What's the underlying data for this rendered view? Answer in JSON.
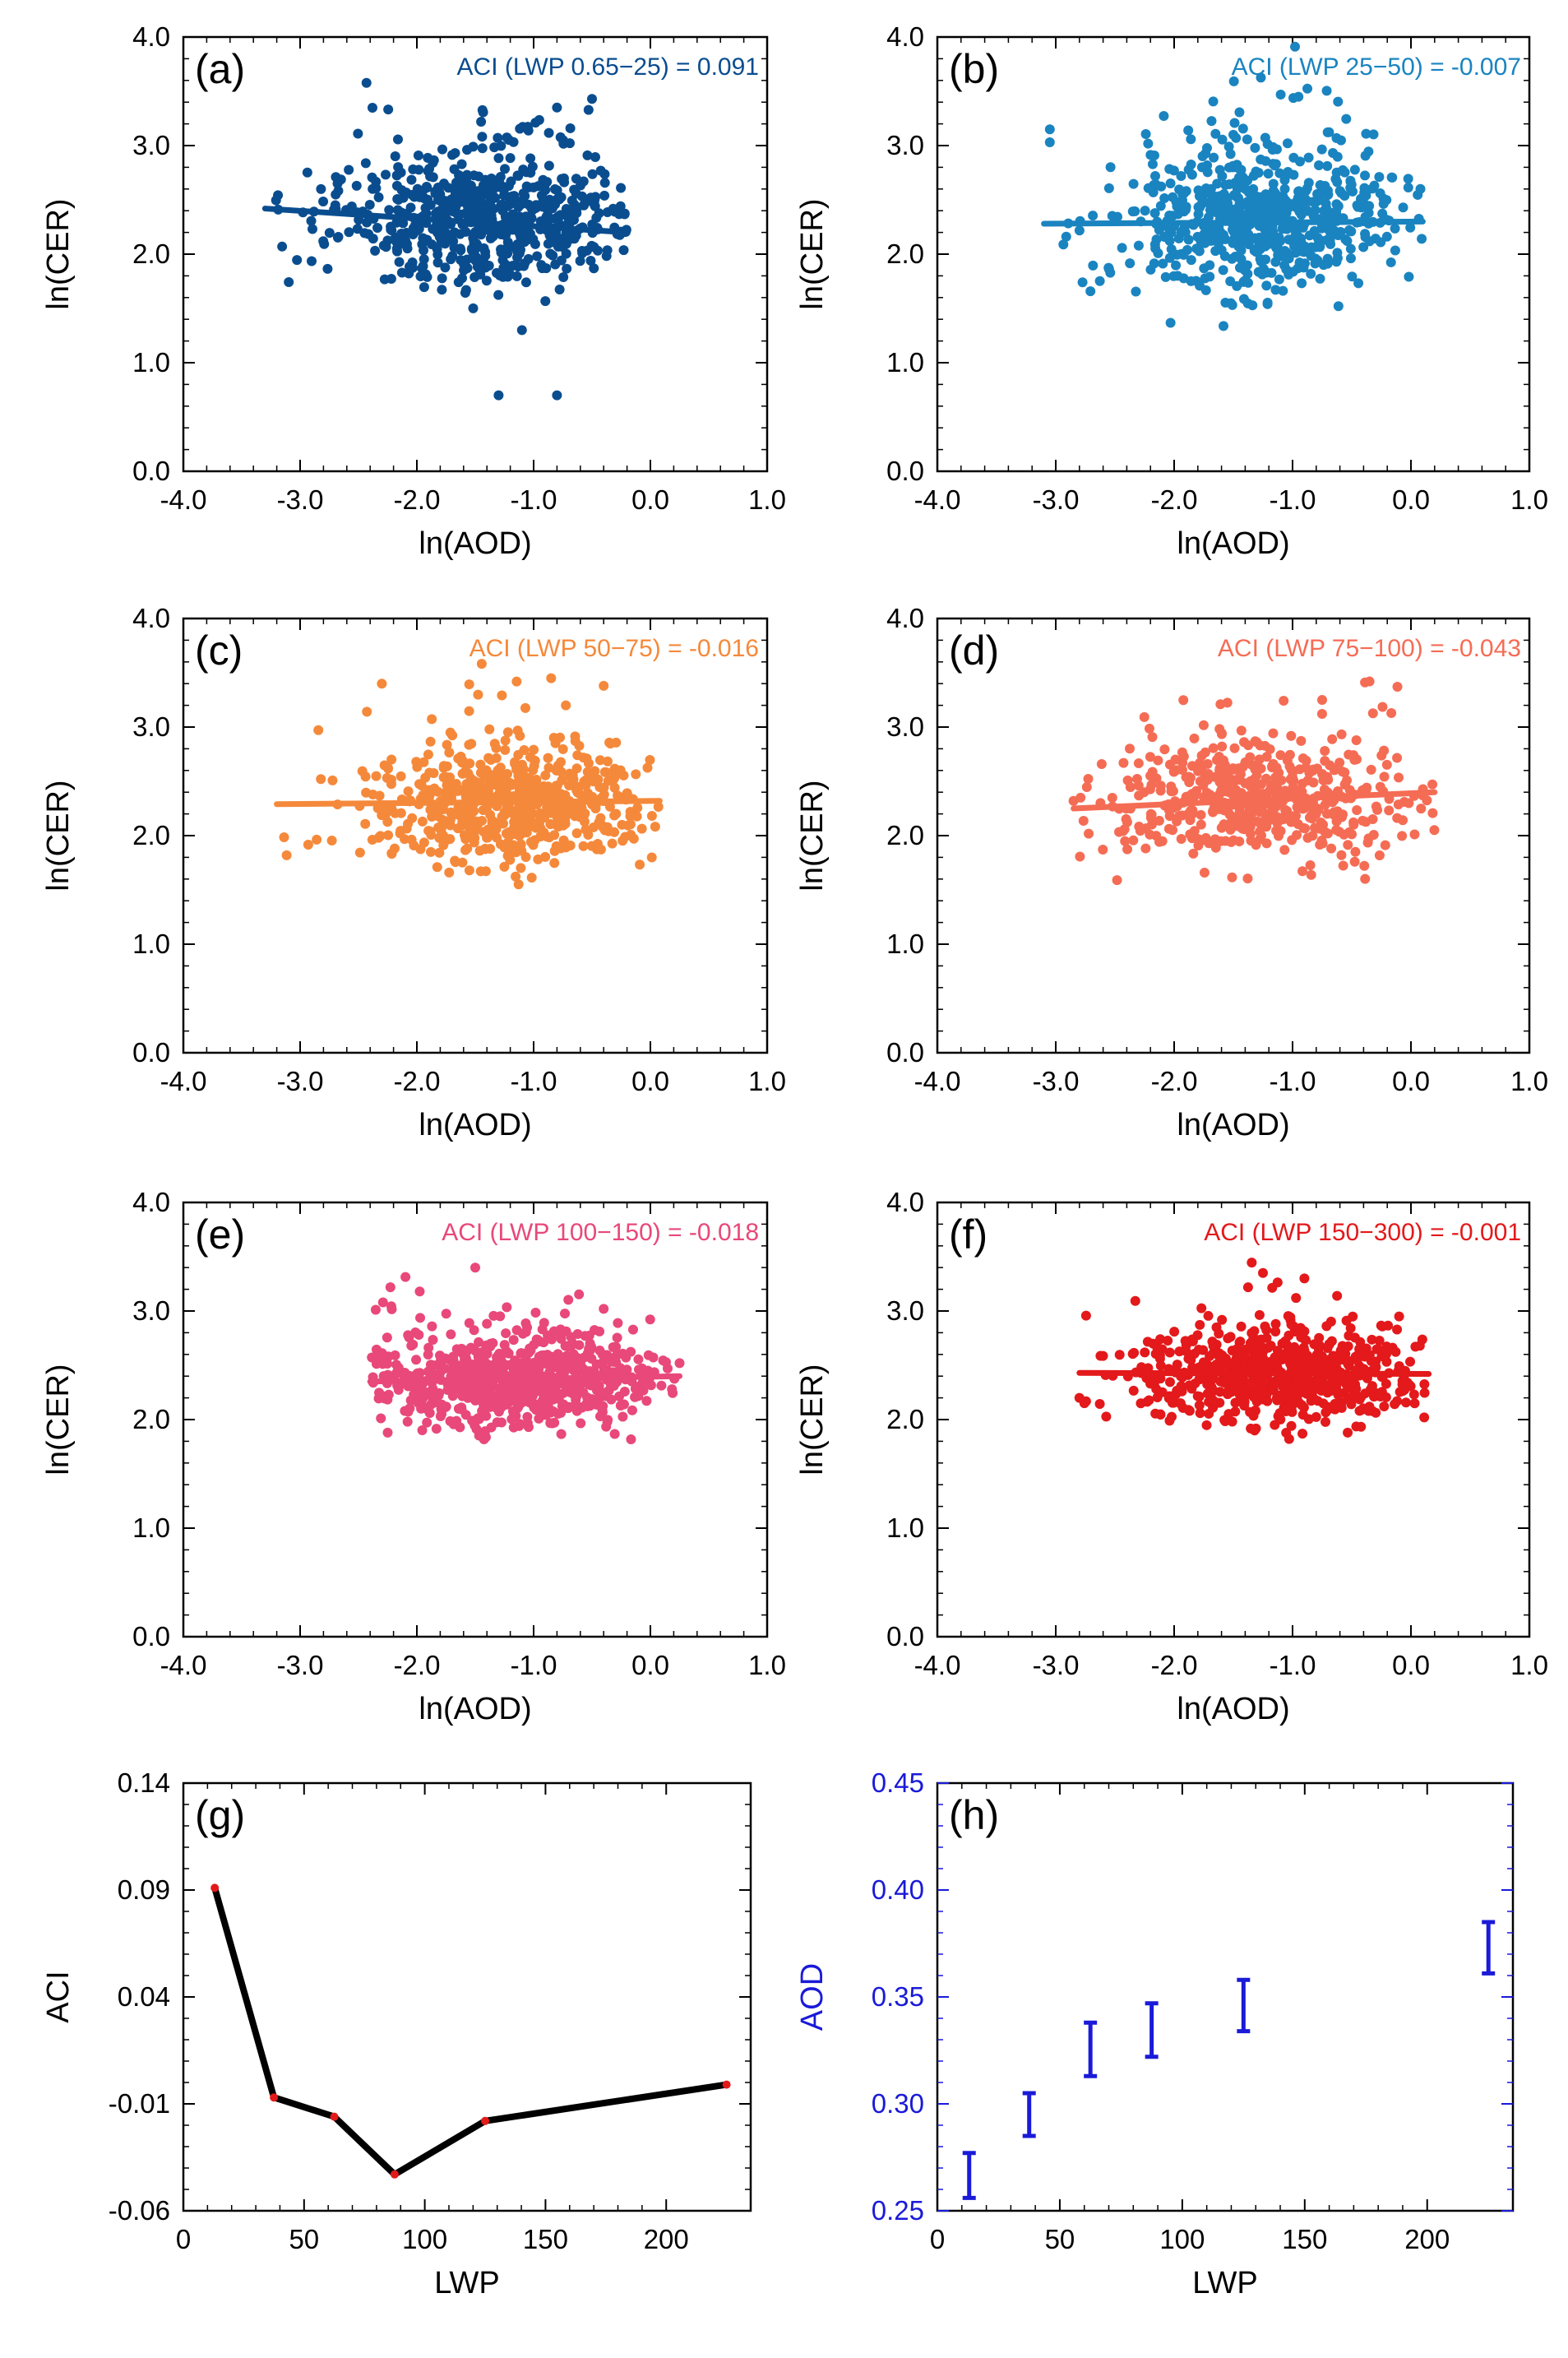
{
  "colors": {
    "a": "#0a4d8f",
    "b": "#1a84c0",
    "c": "#f5893b",
    "d": "#f56c55",
    "e": "#e8487a",
    "f": "#e3191b",
    "g_line": "#000000",
    "g_marker": "#e31a1a",
    "h": "#1a1ad8",
    "axis": "#000000"
  },
  "chart_data": [
    {
      "id": "a",
      "type": "scatter",
      "panel_label": "(a)",
      "annotation": "ACI (LWP 0.65−25) =   0.091",
      "xlabel": "ln(AOD)",
      "ylabel": "ln(CER)",
      "xlim": [
        -4,
        1
      ],
      "ylim": [
        0,
        4
      ],
      "xticks": [
        "-4.0",
        "-3.0",
        "-2.0",
        "-1.0",
        "0.0",
        "1.0"
      ],
      "yticks": [
        "0.0",
        "1.0",
        "2.0",
        "3.0",
        "4.0"
      ],
      "fit": {
        "x": [
          -3.3,
          -0.2
        ],
        "y": [
          2.42,
          2.2
        ]
      },
      "cloud": {
        "x_range": [
          -3.3,
          -0.2
        ],
        "x_center": -1.4,
        "y_center": 2.3,
        "y_spread": 0.28,
        "n_points": 650
      },
      "outliers": [
        [
          -1.3,
          0.7
        ],
        [
          -0.8,
          0.7
        ],
        [
          -0.5,
          3.43
        ],
        [
          -0.8,
          3.35
        ],
        [
          -1.45,
          3.22
        ],
        [
          -1.1,
          1.3
        ]
      ]
    },
    {
      "id": "b",
      "type": "scatter",
      "panel_label": "(b)",
      "annotation": "ACI (LWP 25−50) =  -0.007",
      "xlabel": "ln(AOD)",
      "ylabel": "ln(CER)",
      "xlim": [
        -4,
        1
      ],
      "ylim": [
        0,
        4
      ],
      "xticks": [
        "-4.0",
        "-3.0",
        "-2.0",
        "-1.0",
        "0.0",
        "1.0"
      ],
      "yticks": [
        "0.0",
        "1.0",
        "2.0",
        "3.0",
        "4.0"
      ],
      "fit": {
        "x": [
          -3.1,
          0.1
        ],
        "y": [
          2.28,
          2.3
        ]
      },
      "cloud": {
        "x_range": [
          -3.1,
          0.1
        ],
        "x_center": -1.3,
        "y_center": 2.27,
        "y_spread": 0.3,
        "n_points": 650
      },
      "outliers": [
        [
          -3.05,
          3.15
        ],
        [
          -3.05,
          3.03
        ],
        [
          -1.1,
          3.47
        ],
        [
          -0.95,
          3.45
        ],
        [
          0.08,
          2.6
        ]
      ]
    },
    {
      "id": "c",
      "type": "scatter",
      "panel_label": "(c)",
      "annotation": "ACI (LWP 50−75) =  -0.016",
      "xlabel": "ln(AOD)",
      "ylabel": "ln(CER)",
      "xlim": [
        -4,
        1
      ],
      "ylim": [
        0,
        4
      ],
      "xticks": [
        "-4.0",
        "-3.0",
        "-2.0",
        "-1.0",
        "0.0",
        "1.0"
      ],
      "yticks": [
        "0.0",
        "1.0",
        "2.0",
        "3.0",
        "4.0"
      ],
      "fit": {
        "x": [
          -3.2,
          0.08
        ],
        "y": [
          2.29,
          2.32
        ]
      },
      "cloud": {
        "x_range": [
          -3.2,
          0.08
        ],
        "x_center": -1.2,
        "y_center": 2.25,
        "y_spread": 0.25,
        "n_points": 650
      },
      "outliers": [
        [
          -2.3,
          3.4
        ],
        [
          -0.85,
          3.45
        ],
        [
          -0.4,
          3.38
        ],
        [
          -1.55,
          1.68
        ]
      ]
    },
    {
      "id": "d",
      "type": "scatter",
      "panel_label": "(d)",
      "annotation": "ACI (LWP 75−100) =  -0.043",
      "xlabel": "ln(AOD)",
      "ylabel": "ln(CER)",
      "xlim": [
        -4,
        1
      ],
      "ylim": [
        0,
        4
      ],
      "xticks": [
        "-4.0",
        "-3.0",
        "-2.0",
        "-1.0",
        "0.0",
        "1.0"
      ],
      "yticks": [
        "0.0",
        "1.0",
        "2.0",
        "3.0",
        "4.0"
      ],
      "fit": {
        "x": [
          -2.85,
          0.2
        ],
        "y": [
          2.25,
          2.4
        ]
      },
      "cloud": {
        "x_range": [
          -2.85,
          0.2
        ],
        "x_center": -1.3,
        "y_center": 2.3,
        "y_spread": 0.25,
        "n_points": 520
      },
      "outliers": [
        [
          -2.85,
          2.32
        ],
        [
          -0.35,
          3.42
        ],
        [
          -0.75,
          3.25
        ]
      ]
    },
    {
      "id": "e",
      "type": "scatter",
      "panel_label": "(e)",
      "annotation": "ACI (LWP 100−150) =  -0.018",
      "xlabel": "ln(AOD)",
      "ylabel": "ln(CER)",
      "xlim": [
        -4,
        1
      ],
      "ylim": [
        0,
        4
      ],
      "xticks": [
        "-4.0",
        "-3.0",
        "-2.0",
        "-1.0",
        "0.0",
        "1.0"
      ],
      "yticks": [
        "0.0",
        "1.0",
        "2.0",
        "3.0",
        "4.0"
      ],
      "fit": {
        "x": [
          -2.4,
          0.25
        ],
        "y": [
          2.35,
          2.4
        ]
      },
      "cloud": {
        "x_range": [
          -2.4,
          0.25
        ],
        "x_center": -1.2,
        "y_center": 2.33,
        "y_spread": 0.2,
        "n_points": 700
      },
      "outliers": [
        [
          -2.25,
          1.88
        ],
        [
          -1.5,
          3.4
        ],
        [
          -0.4,
          3.02
        ],
        [
          0.25,
          2.52
        ]
      ]
    },
    {
      "id": "f",
      "type": "scatter",
      "panel_label": "(f)",
      "annotation": "ACI (LWP 150−300) =  -0.001",
      "xlabel": "ln(AOD)",
      "ylabel": "ln(CER)",
      "xlim": [
        -4,
        1
      ],
      "ylim": [
        0,
        4
      ],
      "xticks": [
        "-4.0",
        "-3.0",
        "-2.0",
        "-1.0",
        "0.0",
        "1.0"
      ],
      "yticks": [
        "0.0",
        "1.0",
        "2.0",
        "3.0",
        "4.0"
      ],
      "fit": {
        "x": [
          -2.8,
          0.15
        ],
        "y": [
          2.43,
          2.42
        ]
      },
      "cloud": {
        "x_range": [
          -2.8,
          0.15
        ],
        "x_center": -1.1,
        "y_center": 2.38,
        "y_spread": 0.2,
        "n_points": 700
      },
      "outliers": [
        [
          -2.8,
          2.2
        ],
        [
          -1.25,
          3.35
        ],
        [
          -0.9,
          3.3
        ],
        [
          -0.1,
          2.95
        ]
      ]
    },
    {
      "id": "g",
      "type": "line",
      "panel_label": "(g)",
      "xlabel": "LWP",
      "ylabel": "ACI",
      "xlim": [
        0,
        235
      ],
      "ylim": [
        -0.06,
        0.14
      ],
      "xticks": [
        "0",
        "50",
        "100",
        "150",
        "200"
      ],
      "xtick_values": [
        0,
        50,
        100,
        150,
        200
      ],
      "yticks": [
        "-0.06",
        "-0.01",
        "0.04",
        "0.09",
        "0.14"
      ],
      "ytick_values": [
        -0.06,
        -0.01,
        0.04,
        0.09,
        0.14
      ],
      "x": [
        13,
        37.5,
        62.5,
        87.5,
        125,
        225
      ],
      "y": [
        0.091,
        -0.007,
        -0.016,
        -0.043,
        -0.018,
        -0.001
      ]
    },
    {
      "id": "h",
      "type": "errorbar",
      "panel_label": "(h)",
      "xlabel": "LWP",
      "ylabel": "AOD",
      "xlim": [
        0,
        235
      ],
      "ylim": [
        0.25,
        0.45
      ],
      "xticks": [
        "0",
        "50",
        "100",
        "150",
        "200"
      ],
      "xtick_values": [
        0,
        50,
        100,
        150,
        200
      ],
      "yticks": [
        "0.25",
        "0.30",
        "0.35",
        "0.40",
        "0.45"
      ],
      "ytick_values": [
        0.25,
        0.3,
        0.35,
        0.4,
        0.45
      ],
      "x": [
        13,
        37.5,
        62.5,
        87.5,
        125,
        225
      ],
      "low": [
        0.256,
        0.285,
        0.313,
        0.322,
        0.334,
        0.361
      ],
      "high": [
        0.277,
        0.305,
        0.338,
        0.347,
        0.358,
        0.385
      ]
    }
  ]
}
